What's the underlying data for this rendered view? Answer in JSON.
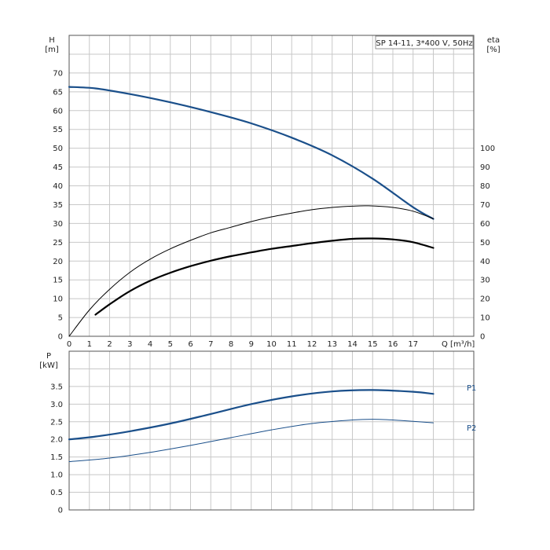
{
  "chart_data": [
    {
      "type": "line",
      "title": "SP 14-11, 3*400 V, 50Hz",
      "xlabel": "Q [m³/h]",
      "xlim": [
        0,
        20
      ],
      "x_ticks": [
        "0",
        "1",
        "2",
        "3",
        "4",
        "5",
        "6",
        "7",
        "8",
        "9",
        "10",
        "11",
        "12",
        "13",
        "14",
        "15",
        "16",
        "17"
      ],
      "y_left": {
        "label_top": "H",
        "label_unit": "[m]",
        "lim": [
          0,
          80
        ],
        "ticks": [
          "0",
          "5",
          "10",
          "15",
          "20",
          "25",
          "30",
          "35",
          "40",
          "45",
          "50",
          "55",
          "60",
          "65",
          "70"
        ]
      },
      "y_right": {
        "label_top": "eta",
        "label_unit": "[%]",
        "lim": [
          0,
          160
        ],
        "ticks": [
          "0",
          "10",
          "20",
          "30",
          "40",
          "50",
          "60",
          "70",
          "80",
          "90",
          "100"
        ]
      },
      "grid": true,
      "series": [
        {
          "axis": "left",
          "color": "#1a4f8a",
          "width": 2.2,
          "x": [
            0,
            1.3,
            3,
            5,
            7,
            9,
            11,
            13,
            15,
            17,
            18
          ],
          "y": [
            66.3,
            65.9,
            64.4,
            62.2,
            59.6,
            56.6,
            52.8,
            48.1,
            41.9,
            34.3,
            31.2
          ]
        },
        {
          "axis": "right",
          "color": "#000000",
          "width": 1,
          "x": [
            0,
            1,
            2,
            3,
            4,
            5,
            6,
            7,
            8,
            9,
            10,
            11,
            12,
            13,
            14,
            14.8,
            16,
            17,
            18
          ],
          "y": [
            0,
            14,
            25,
            34,
            41,
            46.5,
            51,
            55,
            58,
            61,
            63.5,
            65.5,
            67.3,
            68.5,
            69.2,
            69.4,
            68.5,
            66.5,
            62.5
          ]
        },
        {
          "axis": "right",
          "color": "#000000",
          "width": 2.2,
          "x": [
            1.3,
            2,
            3,
            4,
            5,
            6,
            7,
            8,
            9,
            10,
            11,
            12,
            13,
            14,
            15,
            16,
            17,
            18
          ],
          "y": [
            11.5,
            17,
            24,
            29.5,
            33.8,
            37.3,
            40.2,
            42.6,
            44.6,
            46.5,
            48,
            49.5,
            50.8,
            51.8,
            52,
            51.5,
            50,
            47
          ]
        }
      ]
    },
    {
      "type": "line",
      "xlim": [
        0,
        20
      ],
      "y_left": {
        "label_top": "P",
        "label_unit": "[kW]",
        "lim": [
          0,
          4.5
        ],
        "ticks": [
          "0",
          "0.5",
          "1.0",
          "1.5",
          "2.0",
          "2.5",
          "3.0",
          "3.5"
        ]
      },
      "grid": true,
      "series": [
        {
          "name": "P1",
          "color": "#1a4f8a",
          "width": 2.2,
          "x": [
            0,
            1.3,
            3,
            5,
            7,
            9,
            11,
            13,
            15,
            17,
            18
          ],
          "y": [
            2.0,
            2.08,
            2.23,
            2.45,
            2.72,
            3.0,
            3.22,
            3.36,
            3.4,
            3.35,
            3.29
          ]
        },
        {
          "name": "P2",
          "color": "#1a4f8a",
          "width": 1,
          "x": [
            0,
            2,
            4,
            6,
            8,
            10,
            12,
            14,
            15,
            16,
            18
          ],
          "y": [
            1.37,
            1.47,
            1.63,
            1.83,
            2.05,
            2.27,
            2.45,
            2.55,
            2.57,
            2.55,
            2.47
          ]
        }
      ]
    }
  ]
}
